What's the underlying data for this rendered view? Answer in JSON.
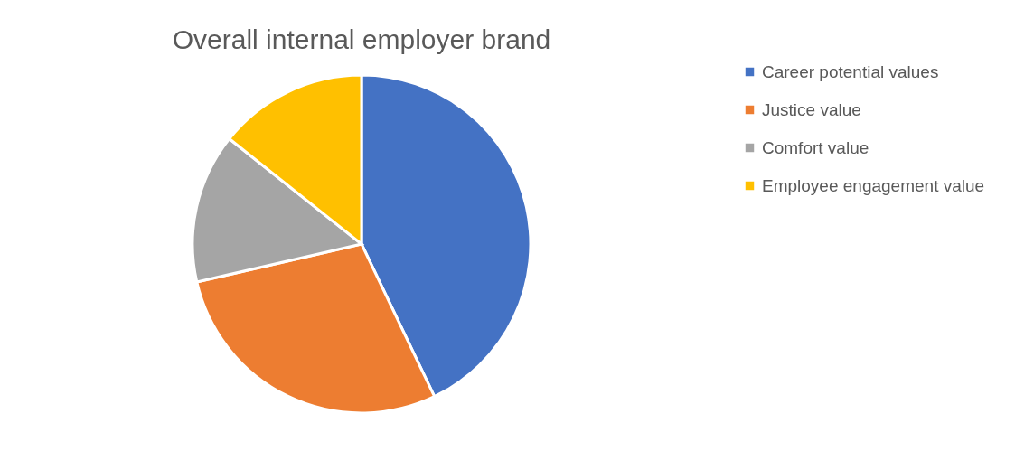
{
  "chart_data": {
    "type": "pie",
    "title": "Overall internal employer brand",
    "categories": [
      "Career potential values",
      "Justice value",
      "Comfort value",
      "Employee engagement value"
    ],
    "values": [
      42.9,
      28.5,
      14.3,
      14.3
    ],
    "colors": [
      "#4472c4",
      "#ed7d31",
      "#a5a5a5",
      "#ffc000"
    ],
    "legend": "right"
  }
}
